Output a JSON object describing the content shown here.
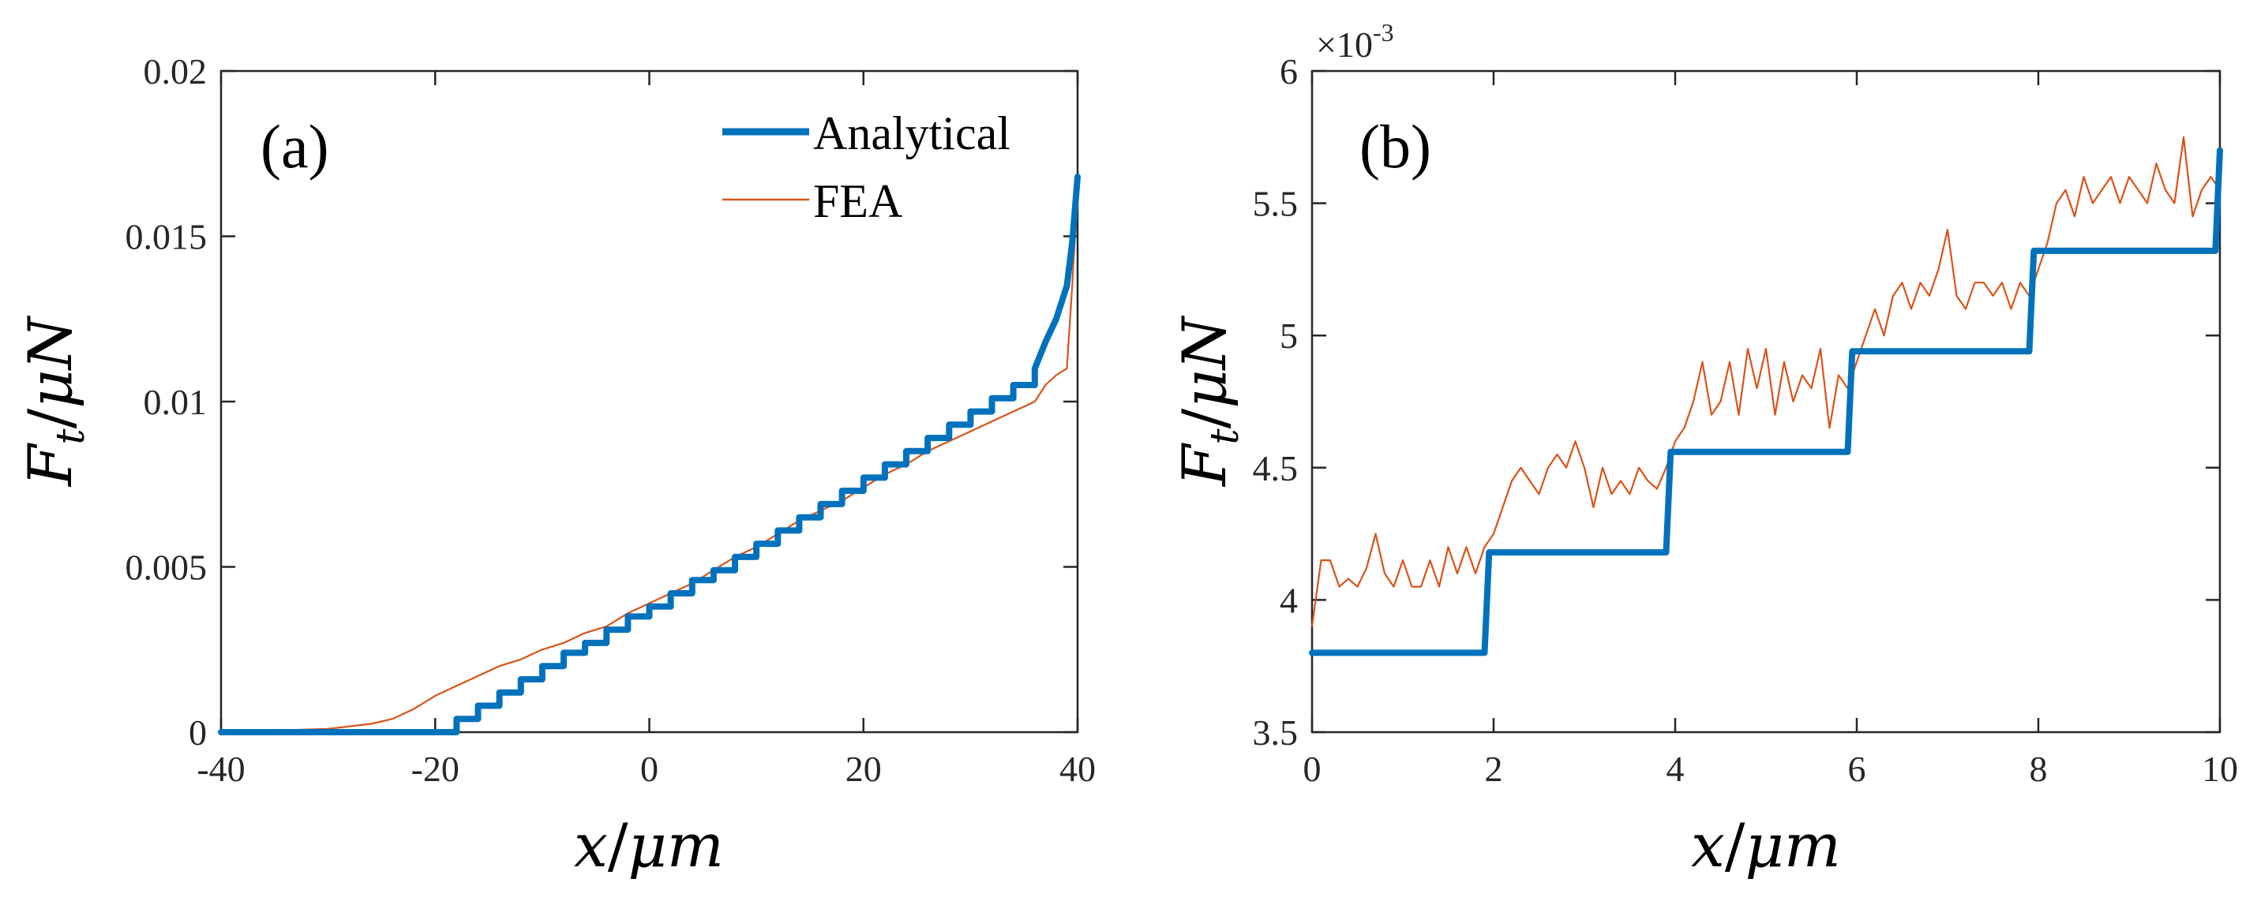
{
  "colors": {
    "analytical": "#0072BD",
    "fea": "#D95319",
    "axis": "#262626",
    "background": "#ffffff"
  },
  "chart_data": [
    {
      "type": "line",
      "panel_label": "(a)",
      "title": "",
      "xlabel": "x/μm",
      "ylabel": "F_t/μN",
      "xlim": [
        -40,
        40
      ],
      "ylim": [
        0,
        0.02
      ],
      "xticks": [
        -40,
        -20,
        0,
        20,
        40
      ],
      "xtick_labels": [
        "-40",
        "-20",
        "0",
        "20",
        "40"
      ],
      "yticks": [
        0,
        0.005,
        0.01,
        0.015,
        0.02
      ],
      "ytick_labels": [
        "0",
        "0.005",
        "0.01",
        "0.015",
        "0.02"
      ],
      "legend": {
        "position": "top-right",
        "entries": [
          "Analytical",
          "FEA"
        ]
      },
      "grid": false,
      "series": [
        {
          "name": "Analytical",
          "style": "step",
          "step_width": 2,
          "x": [
            -40,
            -18,
            -18,
            -16,
            -16,
            -14,
            -14,
            -12,
            -12,
            -10,
            -10,
            -8,
            -8,
            -6,
            -6,
            -4,
            -4,
            -2,
            -2,
            0,
            0,
            2,
            2,
            4,
            4,
            6,
            6,
            8,
            8,
            10,
            10,
            12,
            12,
            14,
            14,
            16,
            16,
            18,
            18,
            20,
            20,
            22,
            22,
            24,
            24,
            26,
            26,
            28,
            28,
            30,
            30,
            32,
            32,
            34,
            34,
            36,
            36,
            37,
            38,
            39,
            39.5,
            40
          ],
          "y": [
            0,
            0,
            0.0004,
            0.0004,
            0.0008,
            0.0008,
            0.0012,
            0.0012,
            0.0016,
            0.0016,
            0.002,
            0.002,
            0.0024,
            0.0024,
            0.0027,
            0.0027,
            0.0031,
            0.0031,
            0.0035,
            0.0035,
            0.0038,
            0.0038,
            0.0042,
            0.0042,
            0.0046,
            0.0046,
            0.0049,
            0.0049,
            0.0053,
            0.0053,
            0.0057,
            0.0057,
            0.0061,
            0.0061,
            0.0065,
            0.0065,
            0.0069,
            0.0069,
            0.0073,
            0.0073,
            0.0077,
            0.0077,
            0.0081,
            0.0081,
            0.0085,
            0.0085,
            0.0089,
            0.0089,
            0.0093,
            0.0093,
            0.0097,
            0.0097,
            0.0101,
            0.0101,
            0.0105,
            0.0105,
            0.011,
            0.0118,
            0.0125,
            0.0135,
            0.0148,
            0.0168
          ]
        },
        {
          "name": "FEA",
          "style": "line",
          "x": [
            -40,
            -30,
            -26,
            -24,
            -22,
            -20,
            -18,
            -16,
            -14,
            -12,
            -10,
            -8,
            -6,
            -4,
            -2,
            0,
            2,
            4,
            6,
            8,
            10,
            12,
            14,
            16,
            18,
            20,
            22,
            24,
            26,
            28,
            30,
            32,
            34,
            36,
            37,
            38,
            39,
            39.5,
            40
          ],
          "y": [
            0,
            0.0001,
            0.00025,
            0.0004,
            0.0007,
            0.0011,
            0.0014,
            0.0017,
            0.002,
            0.0022,
            0.0025,
            0.0027,
            0.003,
            0.0032,
            0.0036,
            0.0039,
            0.0042,
            0.0045,
            0.0049,
            0.0053,
            0.0056,
            0.006,
            0.0064,
            0.0067,
            0.007,
            0.0074,
            0.0078,
            0.0081,
            0.0085,
            0.0088,
            0.0091,
            0.0094,
            0.0097,
            0.01,
            0.0105,
            0.0108,
            0.011,
            0.0135,
            0.0165
          ]
        }
      ]
    },
    {
      "type": "line",
      "panel_label": "(b)",
      "title": "",
      "xlabel": "x/μm",
      "ylabel": "F_t/μN",
      "y_multiplier": "×10^-3",
      "y_multiplier_base": "×10",
      "y_multiplier_exp": "-3",
      "xlim": [
        0,
        10
      ],
      "ylim": [
        3.5,
        6
      ],
      "xticks": [
        0,
        2,
        4,
        6,
        8,
        10
      ],
      "xtick_labels": [
        "0",
        "2",
        "4",
        "6",
        "8",
        "10"
      ],
      "yticks": [
        3.5,
        4,
        4.5,
        5,
        5.5,
        6
      ],
      "ytick_labels": [
        "3.5",
        "4",
        "4.5",
        "5",
        "5.5",
        "6"
      ],
      "grid": false,
      "series": [
        {
          "name": "Analytical",
          "style": "step",
          "x": [
            0,
            1.9,
            1.95,
            3.9,
            3.95,
            5.9,
            5.95,
            7.9,
            7.95,
            9.95,
            10
          ],
          "y": [
            3.8,
            3.8,
            4.18,
            4.18,
            4.56,
            4.56,
            4.94,
            4.94,
            5.32,
            5.32,
            5.7
          ]
        },
        {
          "name": "FEA",
          "style": "line",
          "x": [
            0,
            0.1,
            0.2,
            0.3,
            0.4,
            0.5,
            0.6,
            0.7,
            0.8,
            0.9,
            1.0,
            1.1,
            1.2,
            1.3,
            1.4,
            1.5,
            1.6,
            1.7,
            1.8,
            1.9,
            2.0,
            2.1,
            2.2,
            2.3,
            2.4,
            2.5,
            2.6,
            2.7,
            2.8,
            2.9,
            3.0,
            3.1,
            3.2,
            3.3,
            3.4,
            3.5,
            3.6,
            3.7,
            3.8,
            3.9,
            4.0,
            4.1,
            4.2,
            4.3,
            4.4,
            4.5,
            4.6,
            4.7,
            4.8,
            4.9,
            5.0,
            5.1,
            5.2,
            5.3,
            5.4,
            5.5,
            5.6,
            5.7,
            5.8,
            5.9,
            6.0,
            6.1,
            6.2,
            6.3,
            6.4,
            6.5,
            6.6,
            6.7,
            6.8,
            6.9,
            7.0,
            7.1,
            7.2,
            7.3,
            7.4,
            7.5,
            7.6,
            7.7,
            7.8,
            7.9,
            8.0,
            8.1,
            8.2,
            8.3,
            8.4,
            8.5,
            8.6,
            8.7,
            8.8,
            8.9,
            9.0,
            9.1,
            9.2,
            9.3,
            9.4,
            9.5,
            9.6,
            9.7,
            9.8,
            9.9,
            10.0
          ],
          "y": [
            3.9,
            4.15,
            4.15,
            4.05,
            4.08,
            4.05,
            4.12,
            4.25,
            4.1,
            4.05,
            4.15,
            4.05,
            4.05,
            4.15,
            4.05,
            4.2,
            4.1,
            4.2,
            4.1,
            4.2,
            4.25,
            4.35,
            4.45,
            4.5,
            4.45,
            4.4,
            4.5,
            4.55,
            4.5,
            4.6,
            4.5,
            4.35,
            4.5,
            4.4,
            4.45,
            4.4,
            4.5,
            4.45,
            4.42,
            4.5,
            4.6,
            4.65,
            4.75,
            4.9,
            4.7,
            4.75,
            4.9,
            4.7,
            4.95,
            4.8,
            4.95,
            4.7,
            4.9,
            4.75,
            4.85,
            4.8,
            4.95,
            4.65,
            4.85,
            4.8,
            4.9,
            5.0,
            5.1,
            5.0,
            5.15,
            5.2,
            5.1,
            5.2,
            5.15,
            5.25,
            5.4,
            5.15,
            5.1,
            5.2,
            5.2,
            5.15,
            5.2,
            5.1,
            5.2,
            5.15,
            5.25,
            5.35,
            5.5,
            5.55,
            5.45,
            5.6,
            5.5,
            5.55,
            5.6,
            5.5,
            5.6,
            5.55,
            5.5,
            5.65,
            5.55,
            5.5,
            5.75,
            5.45,
            5.55,
            5.6,
            5.55
          ]
        }
      ]
    }
  ]
}
